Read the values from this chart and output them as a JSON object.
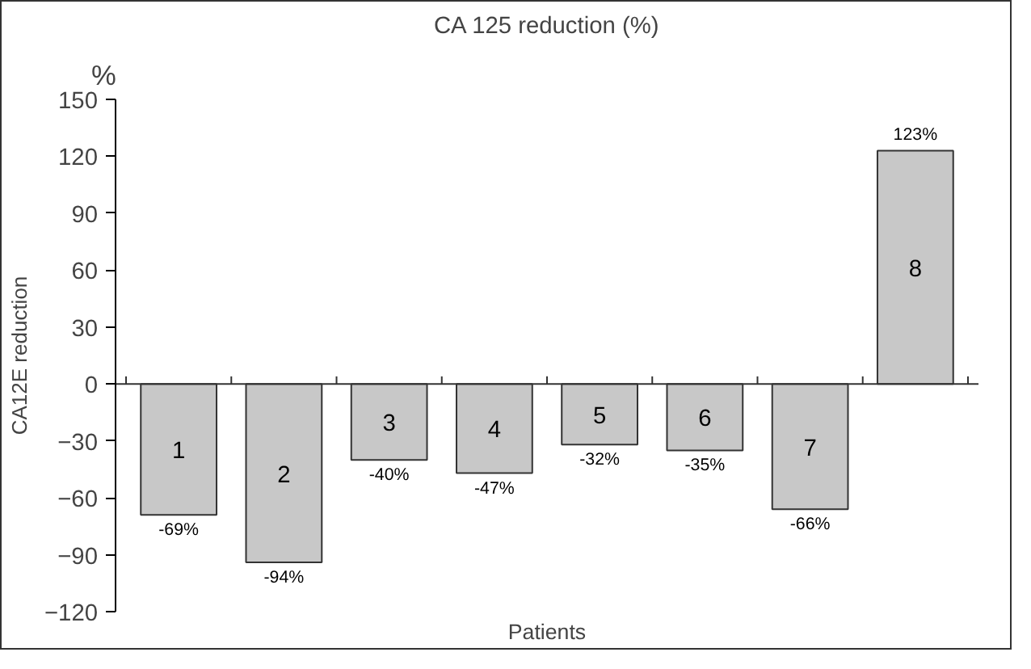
{
  "chart_data": {
    "type": "bar",
    "title": "CA 125 reduction (%)",
    "xlabel": "Patients",
    "ylabel": "CA12E reduction",
    "annotations": [
      "%"
    ],
    "categories": [
      "1",
      "2",
      "3",
      "4",
      "5",
      "6",
      "7",
      "8"
    ],
    "values": [
      -69,
      -94,
      -40,
      -47,
      -32,
      -35,
      -66,
      123
    ],
    "value_labels": [
      "-69%",
      "-94%",
      "-40%",
      "-47%",
      "-32%",
      "-35%",
      "-66%",
      "123%"
    ],
    "color": "#c8c8c8",
    "ylim": [
      -120,
      150
    ],
    "yticks": [
      -120,
      -90,
      -60,
      -30,
      0,
      30,
      60,
      90,
      120,
      150
    ],
    "grid": false
  }
}
